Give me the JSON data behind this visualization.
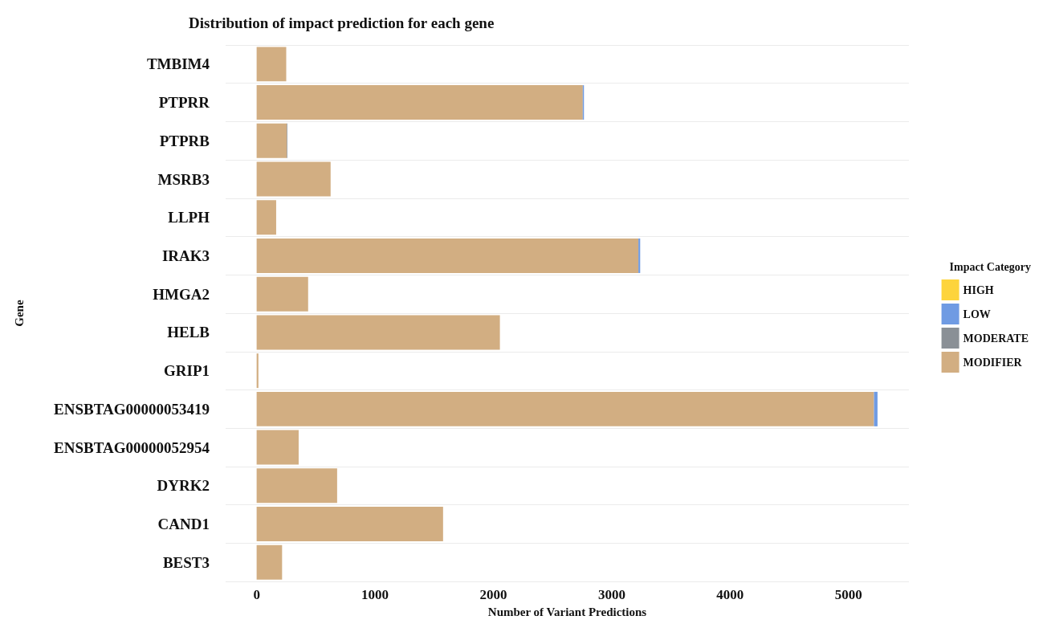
{
  "chart_data": {
    "type": "bar",
    "orientation": "horizontal",
    "stacked": true,
    "title": "Distribution of impact prediction for each gene",
    "xlabel": "Number of Variant Predictions",
    "ylabel": "Gene",
    "legend_title": "Impact Category",
    "legend": "right",
    "grid": "y",
    "categories": [
      "TMBIM4",
      "PTPRR",
      "PTPRB",
      "MSRB3",
      "LLPH",
      "IRAK3",
      "HMGA2",
      "HELB",
      "GRIP1",
      "ENSBTAG00000053419",
      "ENSBTAG00000052954",
      "DYRK2",
      "CAND1",
      "BEST3"
    ],
    "xlim": [
      -262,
      5510
    ],
    "xticks": [
      0,
      1000,
      2000,
      3000,
      4000,
      5000
    ],
    "series": [
      {
        "name": "MODIFIER",
        "color": "#d2ae82",
        "values": [
          250,
          2755,
          255,
          625,
          165,
          3225,
          435,
          2055,
          15,
          5215,
          355,
          680,
          1575,
          215
        ]
      },
      {
        "name": "MODERATE",
        "color": "#8a9096",
        "values": [
          0,
          0,
          5,
          0,
          0,
          0,
          0,
          0,
          0,
          0,
          0,
          0,
          0,
          0
        ]
      },
      {
        "name": "LOW",
        "color": "#6f9be3",
        "values": [
          0,
          10,
          0,
          0,
          0,
          15,
          0,
          0,
          0,
          30,
          0,
          0,
          0,
          0
        ]
      },
      {
        "name": "HIGH",
        "color": "#fdd43c",
        "values": [
          0,
          0,
          0,
          0,
          0,
          0,
          0,
          0,
          0,
          0,
          0,
          0,
          0,
          0
        ]
      }
    ]
  }
}
